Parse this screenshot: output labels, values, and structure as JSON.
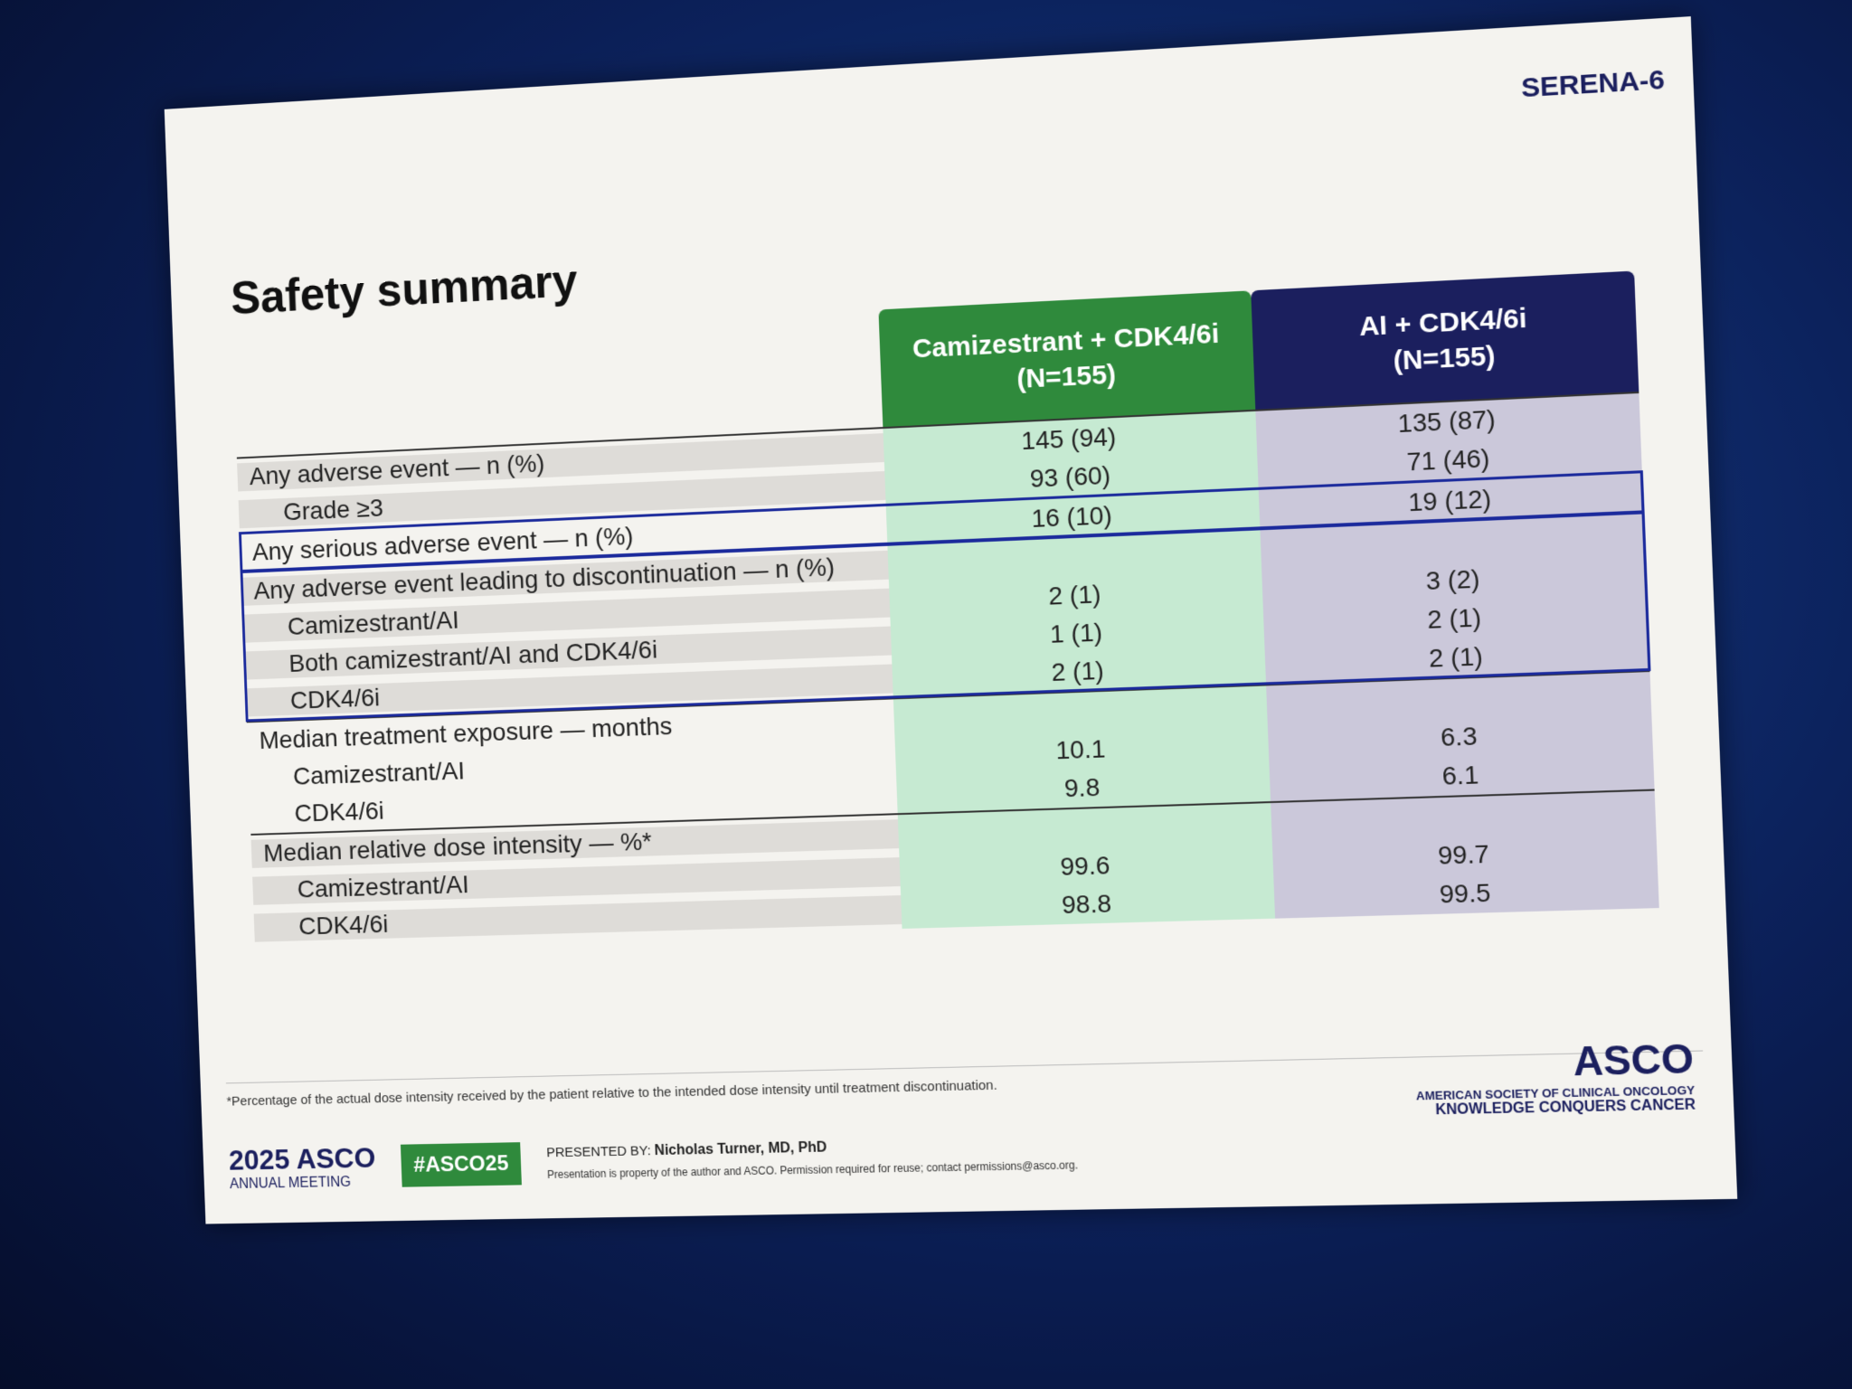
{
  "header": {
    "title": "Safety summary",
    "logo": "SERENA-6"
  },
  "table": {
    "columns": [
      {
        "name": "Camizestrant + CDK4/6i",
        "n": "(N=155)",
        "color": "#2f8a3c",
        "shade": "#c6ead2"
      },
      {
        "name": "AI + CDK4/6i",
        "n": "(N=155)",
        "color": "#1b1f5e",
        "shade": "#cbc8da"
      }
    ],
    "sections": [
      {
        "boxed": false,
        "rows": [
          {
            "label": "Any adverse event — n (%)",
            "values": [
              "145 (94)",
              "135 (87)"
            ]
          },
          {
            "label": "Grade ≥3",
            "indent": true,
            "values": [
              "93 (60)",
              "71 (46)"
            ]
          }
        ]
      },
      {
        "boxed": true,
        "rows": [
          {
            "label": "Any serious adverse event — n (%)",
            "values": [
              "16 (10)",
              "19 (12)"
            ]
          }
        ]
      },
      {
        "boxed": true,
        "rows": [
          {
            "label": "Any adverse event leading to discontinuation — n (%)"
          },
          {
            "label": "Camizestrant/AI",
            "indent": true,
            "values": [
              "2 (1)",
              "3 (2)"
            ]
          },
          {
            "label": "Both camizestrant/AI and CDK4/6i",
            "indent": true,
            "values": [
              "1 (1)",
              "2 (1)"
            ]
          },
          {
            "label": "CDK4/6i",
            "indent": true,
            "values": [
              "2 (1)",
              "2 (1)"
            ]
          }
        ]
      },
      {
        "boxed": false,
        "rows": [
          {
            "label": "Median treatment exposure — months"
          },
          {
            "label": "Camizestrant/AI",
            "indent": true,
            "values": [
              "10.1",
              "6.3"
            ]
          },
          {
            "label": "CDK4/6i",
            "indent": true,
            "values": [
              "9.8",
              "6.1"
            ]
          }
        ]
      },
      {
        "boxed": false,
        "rows": [
          {
            "label": "Median relative dose intensity — %*"
          },
          {
            "label": "Camizestrant/AI",
            "indent": true,
            "values": [
              "99.6",
              "99.7"
            ]
          },
          {
            "label": "CDK4/6i",
            "indent": true,
            "values": [
              "98.8",
              "99.5"
            ]
          }
        ]
      }
    ]
  },
  "footer": {
    "footnote": "*Percentage of the actual dose intensity received by the patient relative to the intended dose intensity until treatment discontinuation.",
    "meeting_year": "2025 ASCO",
    "meeting_name": "ANNUAL MEETING",
    "hashtag": "#ASCO25",
    "presented_by_label": "PRESENTED BY:",
    "presenter": "Nicholas Turner, MD, PhD",
    "rights": "Presentation is property of the author and ASCO. Permission required for reuse; contact permissions@asco.org.",
    "org": "ASCO",
    "org_full": "AMERICAN SOCIETY OF CLINICAL ONCOLOGY",
    "tagline": "KNOWLEDGE CONQUERS CANCER"
  }
}
